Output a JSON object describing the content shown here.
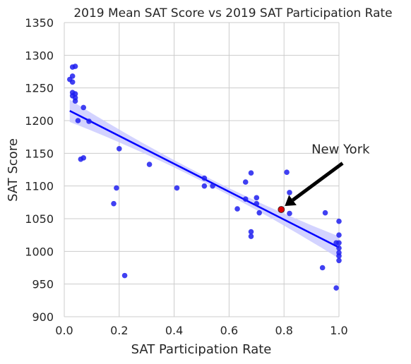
{
  "chart_data": {
    "type": "scatter",
    "title": "2019 Mean SAT Score vs 2019 SAT Participation Rate",
    "xlabel": "SAT Participation Rate",
    "ylabel": "SAT Score",
    "xlim": [
      0.0,
      1.0
    ],
    "ylim": [
      900,
      1350
    ],
    "xticks": [
      0.0,
      0.2,
      0.4,
      0.6,
      0.8,
      1.0
    ],
    "xtick_labels": [
      "0.0",
      "0.2",
      "0.4",
      "0.6",
      "0.8",
      "1.0"
    ],
    "yticks": [
      900,
      950,
      1000,
      1050,
      1100,
      1150,
      1200,
      1250,
      1300,
      1350
    ],
    "ytick_labels": [
      "900",
      "950",
      "1000",
      "1050",
      "1100",
      "1150",
      "1200",
      "1250",
      "1300",
      "1350"
    ],
    "grid": true,
    "point_color": "#1f1ff0",
    "line_color": "#0000ff",
    "band_color": "#c8c8ff",
    "highlight_color": "#e00000",
    "points": [
      {
        "x": 0.02,
        "y": 1263
      },
      {
        "x": 0.03,
        "y": 1282
      },
      {
        "x": 0.04,
        "y": 1283
      },
      {
        "x": 0.03,
        "y": 1268
      },
      {
        "x": 0.03,
        "y": 1259
      },
      {
        "x": 0.03,
        "y": 1243
      },
      {
        "x": 0.04,
        "y": 1241
      },
      {
        "x": 0.03,
        "y": 1238
      },
      {
        "x": 0.04,
        "y": 1235
      },
      {
        "x": 0.04,
        "y": 1230
      },
      {
        "x": 0.07,
        "y": 1220
      },
      {
        "x": 0.05,
        "y": 1200
      },
      {
        "x": 0.09,
        "y": 1199
      },
      {
        "x": 0.06,
        "y": 1141
      },
      {
        "x": 0.07,
        "y": 1143
      },
      {
        "x": 0.2,
        "y": 1157
      },
      {
        "x": 0.19,
        "y": 1097
      },
      {
        "x": 0.18,
        "y": 1073
      },
      {
        "x": 0.22,
        "y": 963
      },
      {
        "x": 0.31,
        "y": 1133
      },
      {
        "x": 0.41,
        "y": 1097
      },
      {
        "x": 0.51,
        "y": 1112
      },
      {
        "x": 0.51,
        "y": 1100
      },
      {
        "x": 0.54,
        "y": 1100
      },
      {
        "x": 0.63,
        "y": 1065
      },
      {
        "x": 0.66,
        "y": 1106
      },
      {
        "x": 0.66,
        "y": 1080
      },
      {
        "x": 0.68,
        "y": 1120
      },
      {
        "x": 0.68,
        "y": 1030
      },
      {
        "x": 0.68,
        "y": 1023
      },
      {
        "x": 0.7,
        "y": 1082
      },
      {
        "x": 0.7,
        "y": 1073
      },
      {
        "x": 0.71,
        "y": 1059
      },
      {
        "x": 0.81,
        "y": 1121
      },
      {
        "x": 0.82,
        "y": 1090
      },
      {
        "x": 0.82,
        "y": 1058
      },
      {
        "x": 0.95,
        "y": 1059
      },
      {
        "x": 0.94,
        "y": 975
      },
      {
        "x": 0.99,
        "y": 944
      },
      {
        "x": 1.0,
        "y": 1046
      },
      {
        "x": 1.0,
        "y": 1025
      },
      {
        "x": 0.99,
        "y": 1013
      },
      {
        "x": 1.0,
        "y": 1013
      },
      {
        "x": 1.0,
        "y": 1005
      },
      {
        "x": 1.0,
        "y": 998
      },
      {
        "x": 1.0,
        "y": 993
      },
      {
        "x": 1.0,
        "y": 986
      }
    ],
    "highlight": {
      "label": "New York",
      "x": 0.79,
      "y": 1064,
      "label_x": 0.9,
      "label_y": 1150
    },
    "regression": {
      "x_start": 0.02,
      "y_start": 1215,
      "x_end": 1.0,
      "y_end": 1006,
      "ci_half_width_ends": 17,
      "ci_half_width_center": 5
    }
  }
}
